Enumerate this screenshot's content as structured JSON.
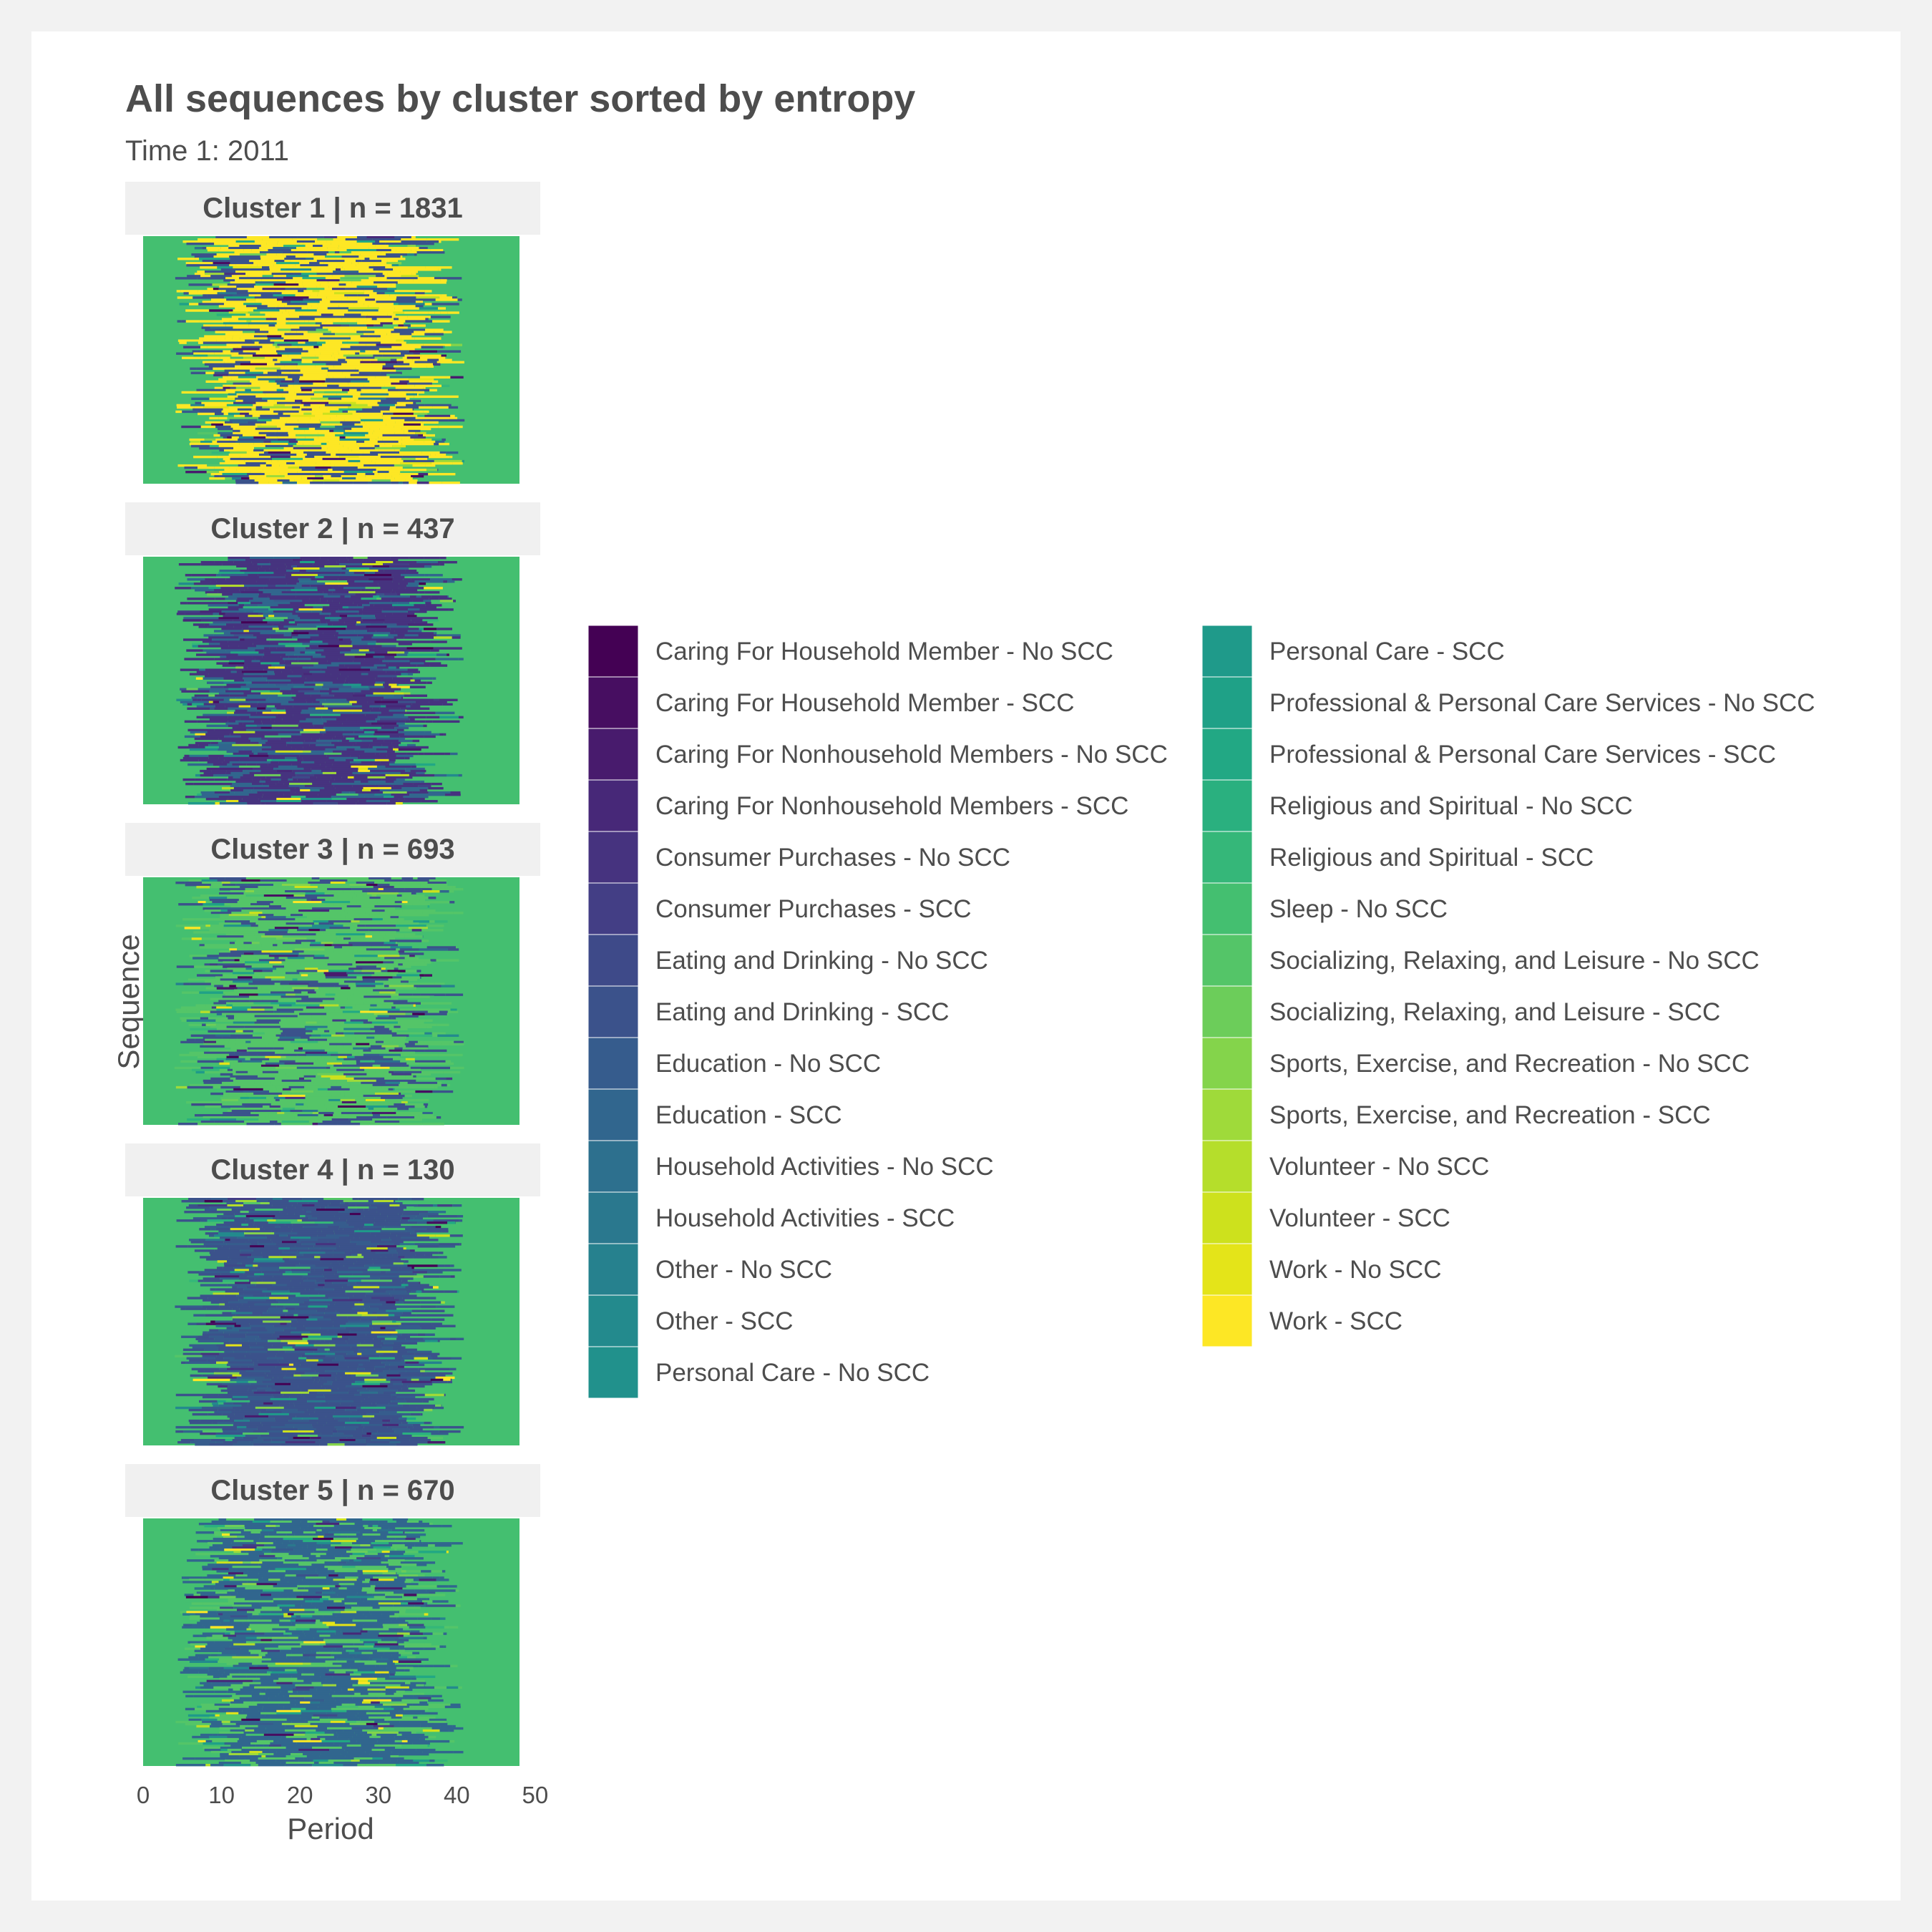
{
  "chart_data": {
    "type": "heatmap",
    "subtype": "sequence index plot",
    "title": "All sequences by cluster sorted by entropy",
    "subtitle": "Time 1: 2011",
    "xlabel": "Period",
    "ylabel": "Sequence",
    "xlim": [
      0,
      48
    ],
    "x_ticks": [
      0,
      10,
      20,
      30,
      40,
      50
    ],
    "facets": [
      {
        "label": "Cluster 1  | n =  1831",
        "cluster": 1,
        "n": 1831,
        "dominant": {
          "base": "Sleep - No SCC",
          "day": "Work - SCC",
          "evening": "Eating and Drinking - SCC"
        }
      },
      {
        "label": "Cluster 2  | n =  437",
        "cluster": 2,
        "n": 437,
        "dominant": {
          "base": "Sleep - No SCC",
          "day": "Consumer Purchases - No SCC",
          "evening": "Education - SCC"
        }
      },
      {
        "label": "Cluster 3  | n =  693",
        "cluster": 3,
        "n": 693,
        "dominant": {
          "base": "Sleep - No SCC",
          "day": "Socializing, Relaxing, and Leisure - No SCC",
          "evening": "Eating and Drinking - SCC"
        }
      },
      {
        "label": "Cluster 4  | n =  130",
        "cluster": 4,
        "n": 130,
        "dominant": {
          "base": "Sleep - No SCC",
          "day": "Eating and Drinking - SCC",
          "evening": "Education - No SCC"
        }
      },
      {
        "label": "Cluster 5  | n =  670",
        "cluster": 5,
        "n": 670,
        "dominant": {
          "base": "Sleep - No SCC",
          "day": "Education - SCC",
          "evening": "Socializing, Relaxing, and Leisure - No SCC"
        }
      }
    ],
    "legend": {
      "placement": "right",
      "columns": 2,
      "entries": [
        {
          "label": "Caring For Household Member - No SCC",
          "color": "#440154"
        },
        {
          "label": "Caring For Household Member - SCC",
          "color": "#470e61"
        },
        {
          "label": "Caring For Nonhousehold Members - No SCC",
          "color": "#481b6d"
        },
        {
          "label": "Caring For Nonhousehold Members - SCC",
          "color": "#472878"
        },
        {
          "label": "Consumer Purchases - No SCC",
          "color": "#46337f"
        },
        {
          "label": "Consumer Purchases - SCC",
          "color": "#433e85"
        },
        {
          "label": "Eating and Drinking - No SCC",
          "color": "#3e4a89"
        },
        {
          "label": "Eating and Drinking - SCC",
          "color": "#3b528b"
        },
        {
          "label": "Education - No SCC",
          "color": "#365c8d"
        },
        {
          "label": "Education - SCC",
          "color": "#31668e"
        },
        {
          "label": "Household Activities - No SCC",
          "color": "#2d708e"
        },
        {
          "label": "Household Activities - SCC",
          "color": "#2a788e"
        },
        {
          "label": "Other - No SCC",
          "color": "#26818e"
        },
        {
          "label": "Other - SCC",
          "color": "#238a8d"
        },
        {
          "label": "Personal Care - No SCC",
          "color": "#21918c"
        },
        {
          "label": "Personal Care - SCC",
          "color": "#1f9a8a"
        },
        {
          "label": "Professional & Personal Care Services - No SCC",
          "color": "#1fa187"
        },
        {
          "label": "Professional & Personal Care Services - SCC",
          "color": "#22a884"
        },
        {
          "label": "Religious and Spiritual - No SCC",
          "color": "#2ab07f"
        },
        {
          "label": "Religious and Spiritual - SCC",
          "color": "#35b779"
        },
        {
          "label": "Sleep - No SCC",
          "color": "#44bf70"
        },
        {
          "label": "Socializing, Relaxing, and Leisure - No SCC",
          "color": "#54c568"
        },
        {
          "label": "Socializing, Relaxing, and Leisure - SCC",
          "color": "#6ccd5a"
        },
        {
          "label": "Sports, Exercise, and Recreation - No SCC",
          "color": "#84d44b"
        },
        {
          "label": "Sports, Exercise, and Recreation - SCC",
          "color": "#9fda3a"
        },
        {
          "label": "Volunteer - No SCC",
          "color": "#b5de2b"
        },
        {
          "label": "Volunteer - SCC",
          "color": "#cde11d"
        },
        {
          "label": "Work - No SCC",
          "color": "#e4e419"
        },
        {
          "label": "Work - SCC",
          "color": "#fde725"
        }
      ]
    }
  }
}
